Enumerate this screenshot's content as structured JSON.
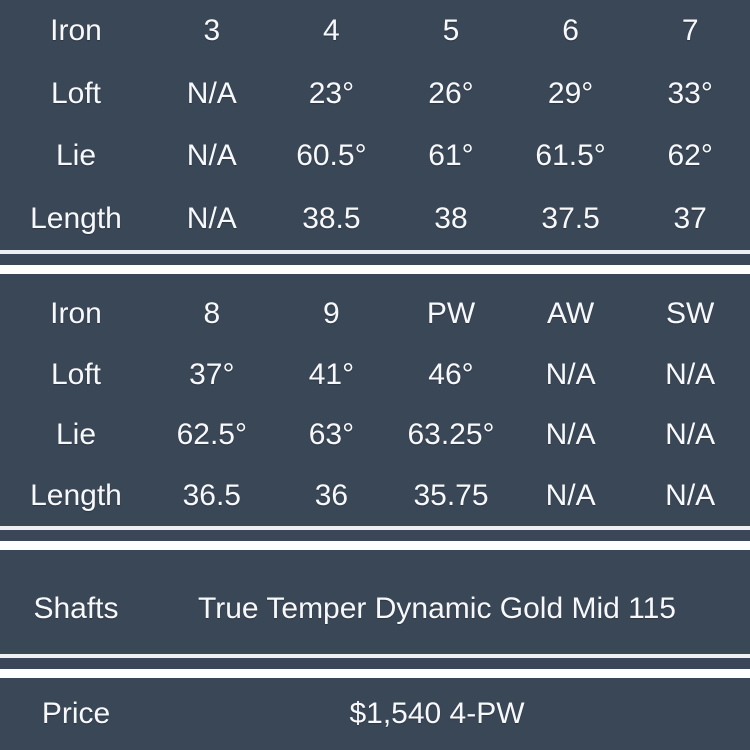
{
  "colors": {
    "background": "#3a4757",
    "text": "#f7f8fa",
    "divider_thin": "#edf0f2",
    "divider_thick": "#ffffff"
  },
  "chart_data": {
    "type": "table",
    "title": "Iron set specifications",
    "layout": "four dark sections separated by thin+thick white double dividers",
    "sections": [
      {
        "name": "irons_3_to_7",
        "rows": [
          [
            "Iron",
            "3",
            "4",
            "5",
            "6",
            "7"
          ],
          [
            "Loft",
            "N/A",
            "23°",
            "26°",
            "29°",
            "33°"
          ],
          [
            "Lie",
            "N/A",
            "60.5°",
            "61°",
            "61.5°",
            "62°"
          ],
          [
            "Length",
            "N/A",
            "38.5",
            "38",
            "37.5",
            "37"
          ]
        ]
      },
      {
        "name": "irons_8_to_sw",
        "rows": [
          [
            "Iron",
            "8",
            "9",
            "PW",
            "AW",
            "SW"
          ],
          [
            "Loft",
            "37°",
            "41°",
            "46°",
            "N/A",
            "N/A"
          ],
          [
            "Lie",
            "62.5°",
            "63°",
            "63.25°",
            "N/A",
            "N/A"
          ],
          [
            "Length",
            "36.5",
            "36",
            "35.75",
            "N/A",
            "N/A"
          ]
        ]
      },
      {
        "name": "shafts",
        "rows": [
          [
            "Shafts",
            "True Temper Dynamic Gold Mid 115"
          ]
        ]
      },
      {
        "name": "price",
        "rows": [
          [
            "Price",
            "$1,540 4-PW"
          ]
        ]
      }
    ]
  }
}
